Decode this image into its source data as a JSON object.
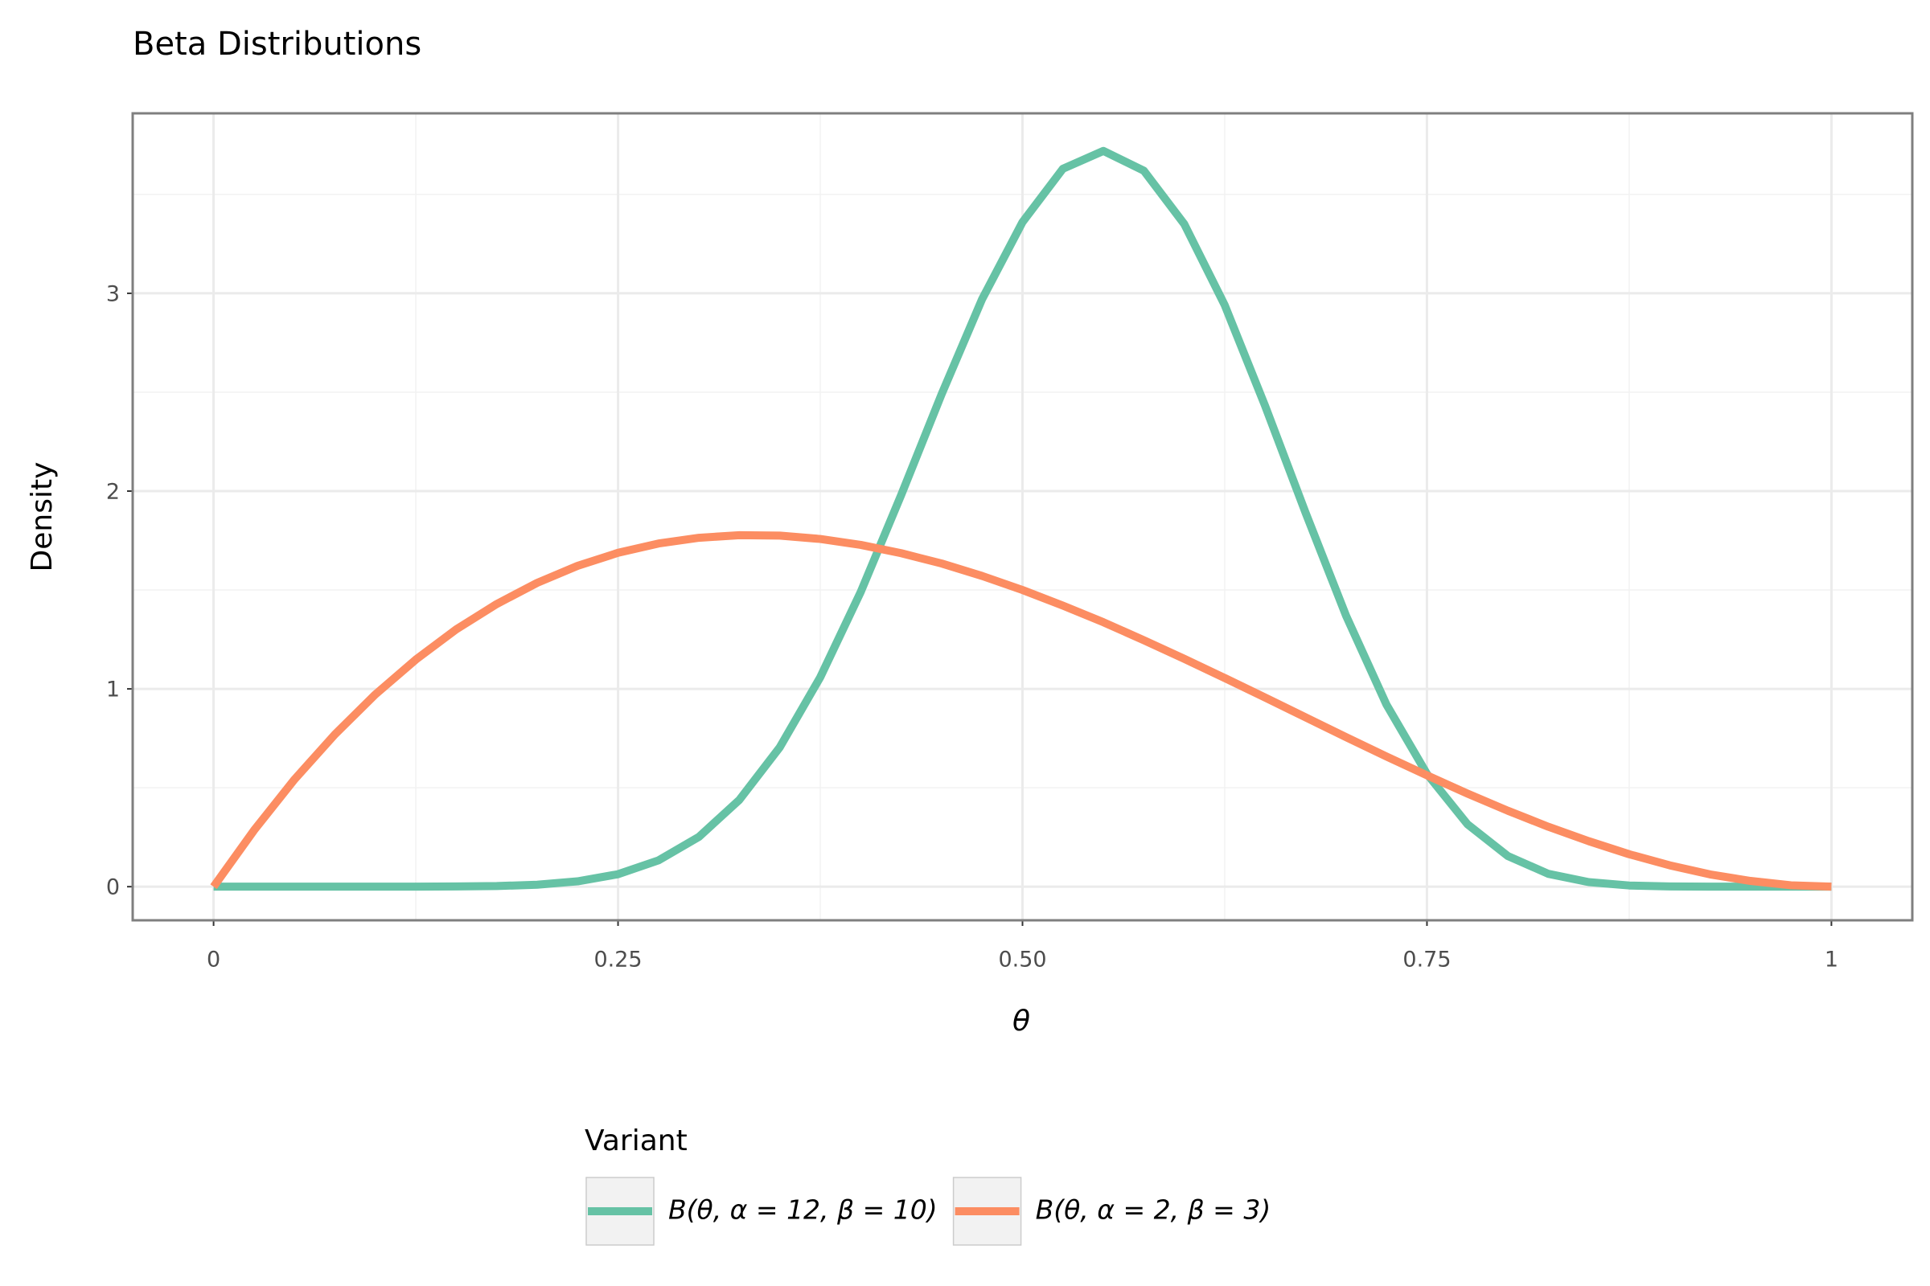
{
  "chart_data": {
    "type": "line",
    "title": "Beta Distributions",
    "x_label": "θ",
    "y_label": "Density",
    "x": [
      0,
      0.025,
      0.05,
      0.075,
      0.1,
      0.125,
      0.15,
      0.175,
      0.2,
      0.225,
      0.25,
      0.275,
      0.3,
      0.325,
      0.35,
      0.375,
      0.4,
      0.425,
      0.45,
      0.475,
      0.5,
      0.525,
      0.55,
      0.575,
      0.6,
      0.625,
      0.65,
      0.675,
      0.7,
      0.725,
      0.75,
      0.775,
      0.8,
      0.825,
      0.85,
      0.875,
      0.9,
      0.925,
      0.95,
      0.975,
      1
    ],
    "series": [
      {
        "name": "B(θ, α = 12, β = 10)",
        "color": "#66c2a5",
        "values": [
          0,
          0,
          0,
          0,
          0,
          0,
          0.001,
          0.003,
          0.01,
          0.027,
          0.063,
          0.133,
          0.252,
          0.439,
          0.705,
          1.059,
          1.49,
          1.98,
          2.49,
          2.97,
          3.36,
          3.63,
          3.72,
          3.62,
          3.35,
          2.94,
          2.43,
          1.89,
          1.37,
          0.92,
          0.57,
          0.316,
          0.155,
          0.065,
          0.023,
          0.006,
          0.001,
          0,
          0,
          0,
          0
        ]
      },
      {
        "name": "B(θ, α = 2, β = 3)",
        "color": "#fc8d62",
        "values": [
          0,
          0.285,
          0.542,
          0.77,
          0.972,
          1.148,
          1.301,
          1.429,
          1.536,
          1.622,
          1.688,
          1.735,
          1.764,
          1.777,
          1.775,
          1.758,
          1.728,
          1.686,
          1.634,
          1.571,
          1.5,
          1.421,
          1.337,
          1.246,
          1.152,
          1.055,
          0.956,
          0.856,
          0.756,
          0.658,
          0.563,
          0.471,
          0.384,
          0.303,
          0.23,
          0.164,
          0.108,
          0.062,
          0.029,
          0.007,
          0
        ]
      }
    ],
    "xlim": [
      -0.05,
      1.05
    ],
    "ylim": [
      -0.17,
      3.91
    ],
    "xticks": [
      0,
      0.25,
      {
        "value": 0.5,
        "label": "0.50"
      },
      0.75,
      1
    ],
    "yticks": [
      0,
      1,
      2,
      3
    ],
    "x_minor_ticks": [
      0.125,
      0.375,
      0.625,
      0.875
    ],
    "y_minor_ticks": [
      0.5,
      1.5,
      2.5,
      3.5
    ],
    "grid": true,
    "legend_title": "Variant",
    "legend_position": "bottom"
  }
}
